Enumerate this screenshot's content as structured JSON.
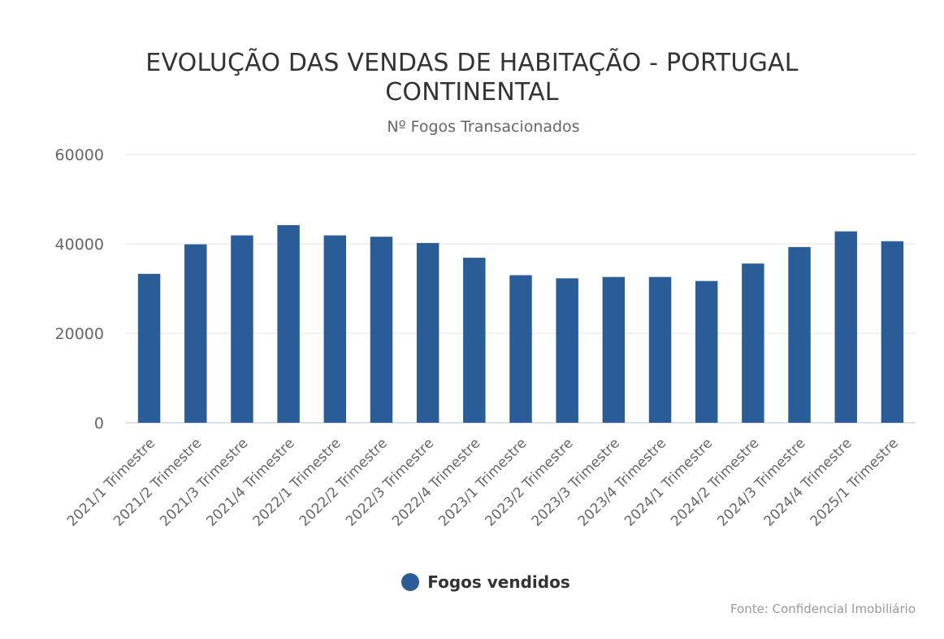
{
  "colors": {
    "bar": "#2a5d98",
    "grid": "#e6e6e6",
    "axis": "#ccd6eb",
    "text": "#333333",
    "muted": "#666666"
  },
  "chart_data": {
    "type": "bar",
    "title": "EVOLUÇÃO DAS VENDAS DE HABITAÇÃO - PORTUGAL CONTINENTAL",
    "subtitle": "Nº Fogos Transacionados",
    "categories": [
      "2021/1 Trimestre",
      "2021/2 Trimestre",
      "2021/3 Trimestre",
      "2021/4 Trimestre",
      "2022/1 Trimestre",
      "2022/2 Trimestre",
      "2022/3 Trimestre",
      "2022/4 Trimestre",
      "2023/1 Trimestre",
      "2023/2 Trimestre",
      "2023/3 Trimestre",
      "2023/4 Trimestre",
      "2024/1 Trimestre",
      "2024/2 Trimestre",
      "2024/3 Trimestre",
      "2024/4 Trimestre",
      "2025/1 Trimestre"
    ],
    "series": [
      {
        "name": "Fogos vendidos",
        "values": [
          33300,
          39900,
          41900,
          44200,
          41900,
          41600,
          40200,
          36900,
          33000,
          32300,
          32600,
          32600,
          31700,
          35600,
          39300,
          42800,
          40600
        ]
      }
    ],
    "yticks": [
      0,
      20000,
      40000,
      60000
    ],
    "ylim": [
      0,
      60000
    ],
    "grid": true,
    "legend_position": "bottom-center",
    "credits": "Fonte: Confidencial Imobiliário"
  }
}
